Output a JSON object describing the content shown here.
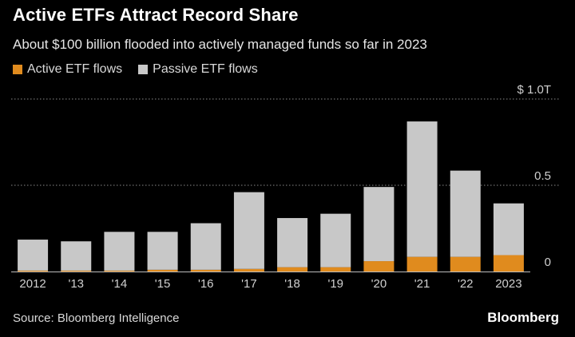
{
  "title": "Active ETFs Attract Record Share",
  "subtitle": "About $100 billion flooded into actively managed funds so far in 2023",
  "source": "Source: Bloomberg Intelligence",
  "brand": "Bloomberg",
  "chart_data": {
    "type": "bar",
    "stacked": true,
    "categories": [
      "2012",
      "'13",
      "'14",
      "'15",
      "'16",
      "'17",
      "'18",
      "'19",
      "'20",
      "'21",
      "'22",
      "2023"
    ],
    "series": [
      {
        "name": "Active ETF flows",
        "color": "#e08b1e",
        "values": [
          0.005,
          0.005,
          0.005,
          0.01,
          0.01,
          0.015,
          0.025,
          0.025,
          0.06,
          0.085,
          0.085,
          0.095
        ]
      },
      {
        "name": "Passive ETF flows",
        "color": "#c8c8c8",
        "values": [
          0.18,
          0.17,
          0.225,
          0.22,
          0.27,
          0.445,
          0.285,
          0.31,
          0.43,
          0.785,
          0.5,
          0.3
        ]
      }
    ],
    "y_ticks": [
      {
        "value": 0,
        "label": "0"
      },
      {
        "value": 0.5,
        "label": "0.5"
      },
      {
        "value": 1.0,
        "label": "$ 1.0T"
      }
    ],
    "ylim": [
      0,
      1.0
    ],
    "grid": true,
    "legend_position": "top-left"
  }
}
